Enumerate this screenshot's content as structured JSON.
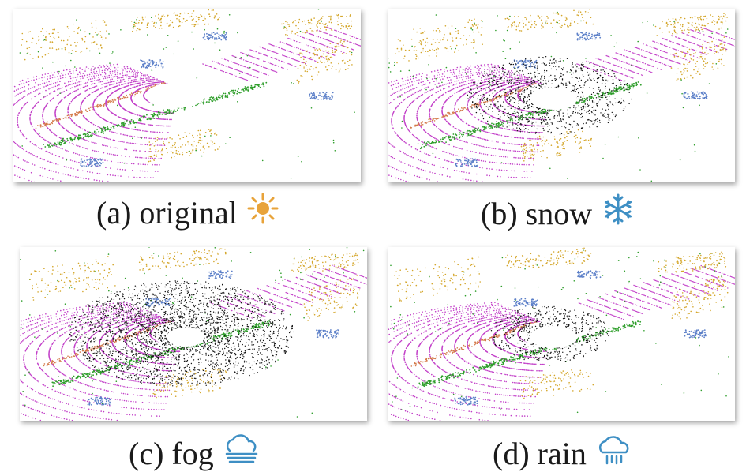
{
  "panels": [
    {
      "id": "a",
      "caption": "(a) original",
      "icon": "sun-icon",
      "weather": "original",
      "icon_color": "#E8A33A"
    },
    {
      "id": "b",
      "caption": "(b) snow",
      "icon": "snowflake-icon",
      "weather": "snow",
      "icon_color": "#3E8FC4"
    },
    {
      "id": "c",
      "caption": "(c) fog",
      "icon": "fog-icon",
      "weather": "fog",
      "icon_color": "#3E8FC4"
    },
    {
      "id": "d",
      "caption": "(d) rain",
      "icon": "rain-cloud-icon",
      "weather": "rain",
      "icon_color": "#3E8FC4"
    }
  ],
  "colors": {
    "road": "#C23FC8",
    "vegetation": "#2E9E2A",
    "building": "#D4A62A",
    "sidewalk": "#D47A4A",
    "car": "#5B7FC8",
    "noise": "#111111",
    "sun": "#E8A33A",
    "weather_icon": "#3E8FC4"
  }
}
